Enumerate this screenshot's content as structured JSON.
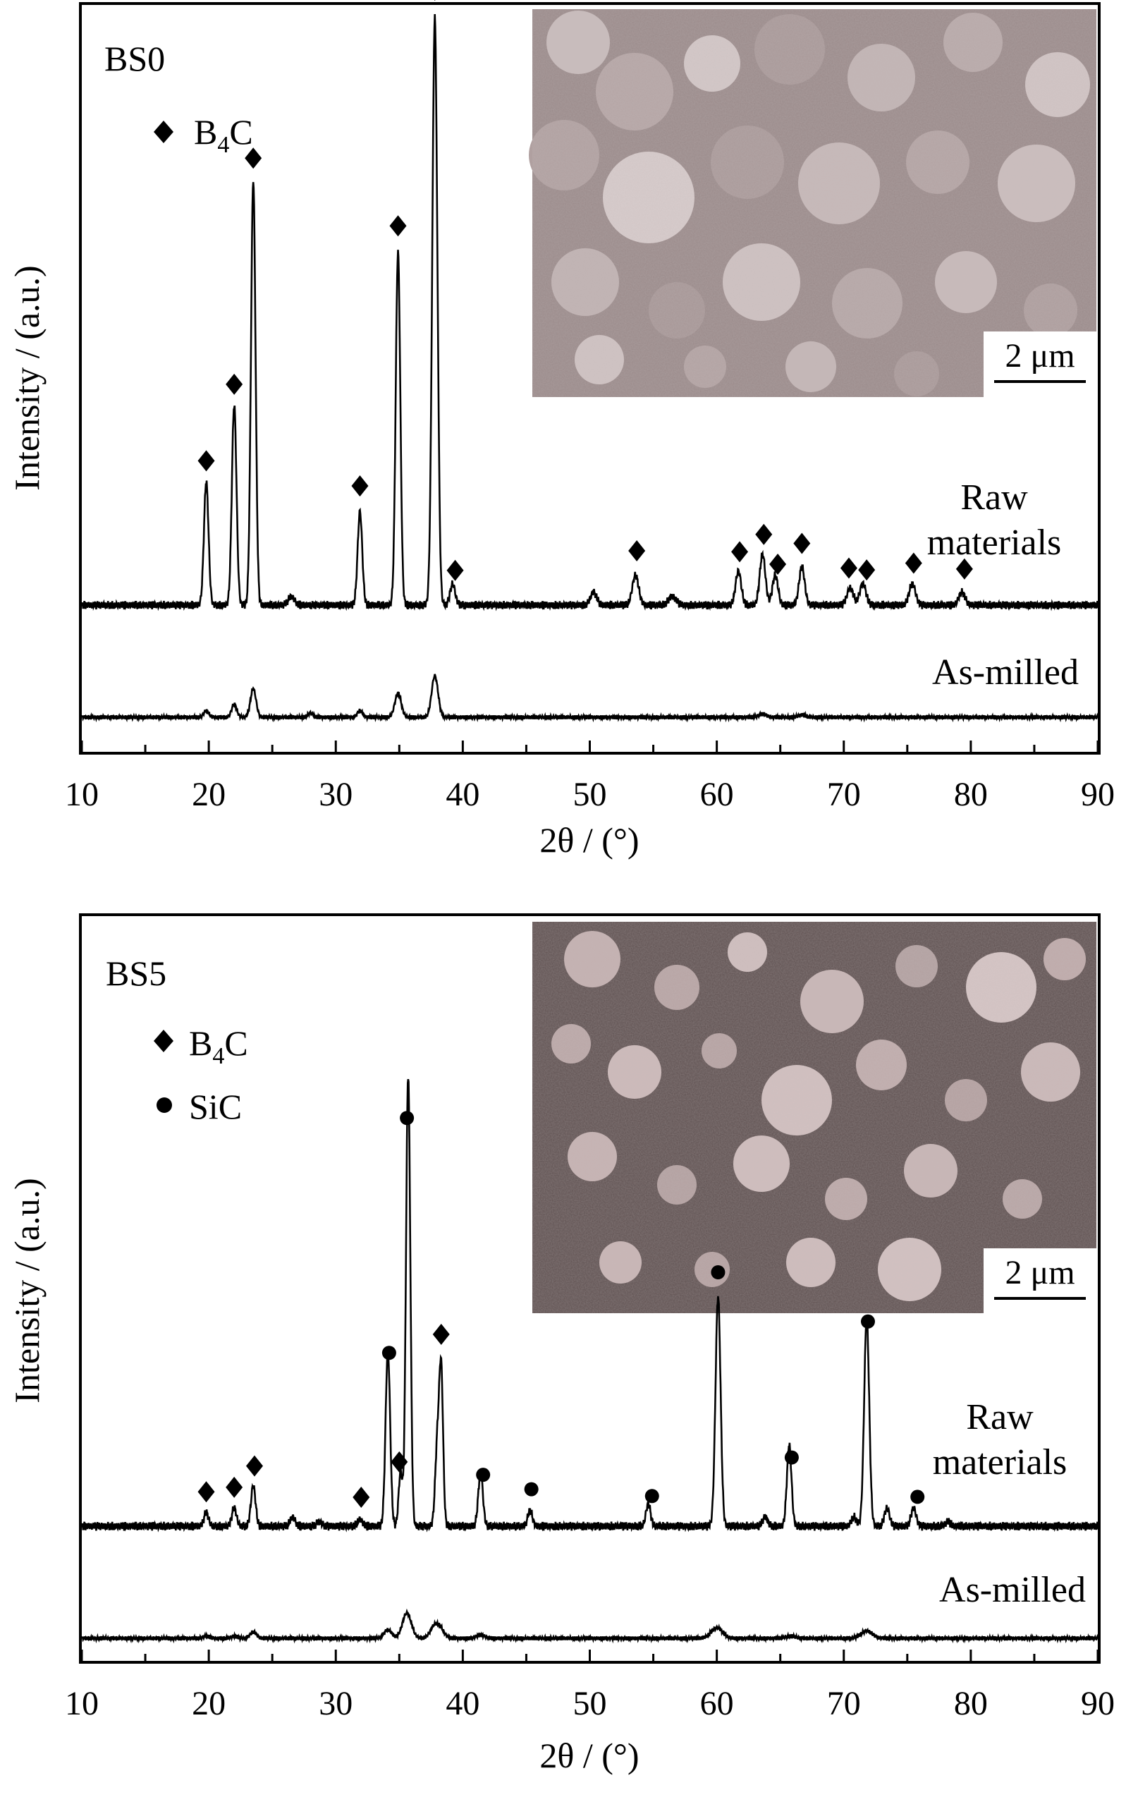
{
  "chart_data": [
    {
      "type": "line",
      "panel_label": "BS0",
      "xlabel": "2θ / (°)",
      "ylabel": "Intensity / (a.u.)",
      "xlim": [
        10,
        90
      ],
      "x_ticks": [
        "10",
        "20",
        "30",
        "40",
        "50",
        "60",
        "70",
        "80",
        "90"
      ],
      "legend": [
        {
          "marker": "diamond",
          "label": "B4C",
          "text": "B",
          "sub": "4",
          "tail": "C"
        }
      ],
      "inset": {
        "type": "SEM micrograph",
        "scale_bar": "2 μm"
      },
      "series": [
        {
          "name": "Raw materials",
          "label_lines": [
            "Raw",
            "materials"
          ],
          "peaks": [
            {
              "x": 19.8,
              "h": 0.29,
              "w": 0.18
            },
            {
              "x": 22.0,
              "h": 0.47,
              "w": 0.18
            },
            {
              "x": 23.5,
              "h": 1.0,
              "w": 0.18
            },
            {
              "x": 26.5,
              "h": 0.02,
              "w": 0.25
            },
            {
              "x": 31.9,
              "h": 0.22,
              "w": 0.18
            },
            {
              "x": 34.9,
              "h": 0.83,
              "w": 0.18
            },
            {
              "x": 37.8,
              "h": 1.38,
              "w": 0.2
            },
            {
              "x": 39.2,
              "h": 0.05,
              "w": 0.2
            },
            {
              "x": 50.3,
              "h": 0.03,
              "w": 0.25
            },
            {
              "x": 53.6,
              "h": 0.07,
              "w": 0.25
            },
            {
              "x": 56.5,
              "h": 0.02,
              "w": 0.3
            },
            {
              "x": 61.7,
              "h": 0.08,
              "w": 0.22
            },
            {
              "x": 63.6,
              "h": 0.12,
              "w": 0.22
            },
            {
              "x": 64.6,
              "h": 0.07,
              "w": 0.22
            },
            {
              "x": 66.7,
              "h": 0.09,
              "w": 0.22
            },
            {
              "x": 70.5,
              "h": 0.04,
              "w": 0.25
            },
            {
              "x": 71.5,
              "h": 0.05,
              "w": 0.25
            },
            {
              "x": 75.4,
              "h": 0.05,
              "w": 0.25
            },
            {
              "x": 79.3,
              "h": 0.03,
              "w": 0.25
            }
          ],
          "markers": [
            {
              "x": 19.8,
              "symbol": "diamond"
            },
            {
              "x": 22.0,
              "symbol": "diamond"
            },
            {
              "x": 23.5,
              "symbol": "diamond"
            },
            {
              "x": 31.9,
              "symbol": "diamond"
            },
            {
              "x": 34.9,
              "symbol": "diamond"
            },
            {
              "x": 37.8,
              "symbol": "diamond"
            },
            {
              "x": 39.4,
              "symbol": "diamond"
            },
            {
              "x": 53.7,
              "symbol": "diamond"
            },
            {
              "x": 61.8,
              "symbol": "diamond"
            },
            {
              "x": 63.7,
              "symbol": "diamond"
            },
            {
              "x": 64.8,
              "symbol": "diamond"
            },
            {
              "x": 66.7,
              "symbol": "diamond"
            },
            {
              "x": 70.4,
              "symbol": "diamond"
            },
            {
              "x": 71.8,
              "symbol": "diamond"
            },
            {
              "x": 75.5,
              "symbol": "diamond"
            },
            {
              "x": 79.5,
              "symbol": "diamond"
            }
          ]
        },
        {
          "name": "As-milled",
          "label_lines": [
            "As-milled"
          ],
          "peaks": [
            {
              "x": 19.8,
              "h": 0.03,
              "w": 0.2
            },
            {
              "x": 22.0,
              "h": 0.06,
              "w": 0.2
            },
            {
              "x": 23.5,
              "h": 0.13,
              "w": 0.22
            },
            {
              "x": 28.0,
              "h": 0.02,
              "w": 0.2
            },
            {
              "x": 31.9,
              "h": 0.03,
              "w": 0.2
            },
            {
              "x": 34.9,
              "h": 0.11,
              "w": 0.25
            },
            {
              "x": 37.8,
              "h": 0.19,
              "w": 0.25
            },
            {
              "x": 63.6,
              "h": 0.015,
              "w": 0.3
            },
            {
              "x": 66.7,
              "h": 0.01,
              "w": 0.3
            }
          ],
          "markers": []
        }
      ]
    },
    {
      "type": "line",
      "panel_label": "BS5",
      "xlabel": "2θ / (°)",
      "ylabel": "Intensity / (a.u.)",
      "xlim": [
        10,
        90
      ],
      "x_ticks": [
        "10",
        "20",
        "30",
        "40",
        "50",
        "60",
        "70",
        "80",
        "90"
      ],
      "legend": [
        {
          "marker": "diamond",
          "label": "B4C",
          "text": "B",
          "sub": "4",
          "tail": "C"
        },
        {
          "marker": "circle",
          "label": "SiC",
          "text": "SiC",
          "sub": "",
          "tail": ""
        }
      ],
      "inset": {
        "type": "SEM micrograph",
        "scale_bar": "2 μm"
      },
      "series": [
        {
          "name": "Raw materials",
          "label_lines": [
            "Raw",
            "materials"
          ],
          "peaks": [
            {
              "x": 19.8,
              "h": 0.03,
              "w": 0.18
            },
            {
              "x": 22.0,
              "h": 0.04,
              "w": 0.18
            },
            {
              "x": 23.5,
              "h": 0.09,
              "w": 0.18
            },
            {
              "x": 26.6,
              "h": 0.02,
              "w": 0.2
            },
            {
              "x": 28.7,
              "h": 0.01,
              "w": 0.2
            },
            {
              "x": 31.9,
              "h": 0.015,
              "w": 0.2
            },
            {
              "x": 34.1,
              "h": 0.39,
              "w": 0.18
            },
            {
              "x": 35.1,
              "h": 0.12,
              "w": 0.15
            },
            {
              "x": 35.7,
              "h": 1.0,
              "w": 0.17
            },
            {
              "x": 38.0,
              "h": 0.18,
              "w": 0.17
            },
            {
              "x": 38.3,
              "h": 0.33,
              "w": 0.15
            },
            {
              "x": 41.4,
              "h": 0.12,
              "w": 0.18
            },
            {
              "x": 45.3,
              "h": 0.035,
              "w": 0.18
            },
            {
              "x": 54.6,
              "h": 0.05,
              "w": 0.18
            },
            {
              "x": 60.1,
              "h": 0.51,
              "w": 0.2
            },
            {
              "x": 63.8,
              "h": 0.02,
              "w": 0.2
            },
            {
              "x": 65.7,
              "h": 0.18,
              "w": 0.18
            },
            {
              "x": 70.8,
              "h": 0.02,
              "w": 0.2
            },
            {
              "x": 71.8,
              "h": 0.46,
              "w": 0.2
            },
            {
              "x": 73.4,
              "h": 0.04,
              "w": 0.2
            },
            {
              "x": 75.5,
              "h": 0.04,
              "w": 0.2
            },
            {
              "x": 78.2,
              "h": 0.01,
              "w": 0.2
            }
          ],
          "markers": [
            {
              "x": 19.8,
              "symbol": "diamond"
            },
            {
              "x": 22.0,
              "symbol": "diamond"
            },
            {
              "x": 23.6,
              "symbol": "diamond"
            },
            {
              "x": 32.0,
              "symbol": "diamond"
            },
            {
              "x": 34.2,
              "symbol": "circle"
            },
            {
              "x": 35.0,
              "symbol": "diamond"
            },
            {
              "x": 35.6,
              "symbol": "circle"
            },
            {
              "x": 38.3,
              "symbol": "diamond"
            },
            {
              "x": 41.6,
              "symbol": "circle"
            },
            {
              "x": 45.4,
              "symbol": "circle"
            },
            {
              "x": 54.9,
              "symbol": "circle"
            },
            {
              "x": 60.1,
              "symbol": "circle"
            },
            {
              "x": 65.9,
              "symbol": "circle"
            },
            {
              "x": 71.9,
              "symbol": "circle"
            },
            {
              "x": 75.8,
              "symbol": "circle"
            }
          ]
        },
        {
          "name": "As-milled",
          "label_lines": [
            "As-milled"
          ],
          "peaks": [
            {
              "x": 19.8,
              "h": 0.01,
              "w": 0.25
            },
            {
              "x": 22.0,
              "h": 0.01,
              "w": 0.25
            },
            {
              "x": 23.5,
              "h": 0.03,
              "w": 0.25
            },
            {
              "x": 34.1,
              "h": 0.04,
              "w": 0.3
            },
            {
              "x": 35.6,
              "h": 0.12,
              "w": 0.35
            },
            {
              "x": 37.8,
              "h": 0.06,
              "w": 0.35
            },
            {
              "x": 38.3,
              "h": 0.03,
              "w": 0.3
            },
            {
              "x": 41.4,
              "h": 0.015,
              "w": 0.35
            },
            {
              "x": 60.0,
              "h": 0.05,
              "w": 0.45
            },
            {
              "x": 65.8,
              "h": 0.01,
              "w": 0.4
            },
            {
              "x": 71.8,
              "h": 0.035,
              "w": 0.45
            }
          ],
          "markers": []
        }
      ]
    }
  ]
}
